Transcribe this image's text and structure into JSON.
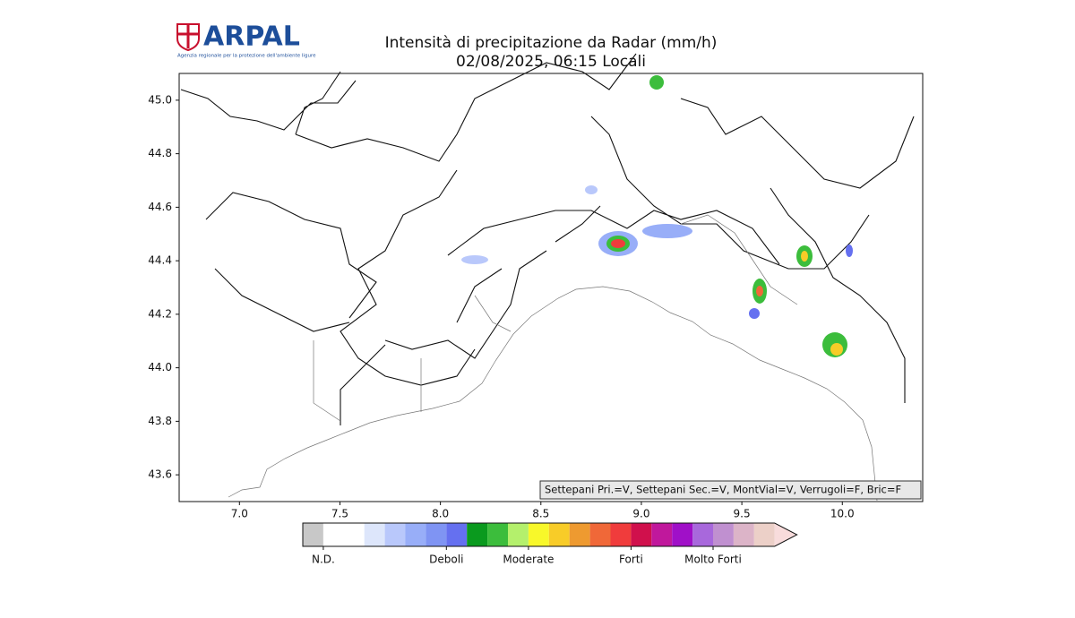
{
  "header": {
    "logo": "ARPAL",
    "logo_subtitle": "Agenzia regionale per la protezione dell'ambiente ligure",
    "title": "Intensità di precipitazione da Radar (mm/h)",
    "subtitle": "02/08/2025, 06:15 Locali"
  },
  "map": {
    "xlim": [
      6.7,
      10.4
    ],
    "ylim": [
      43.5,
      45.1
    ],
    "xticks": [
      {
        "value": 7,
        "label": "7.0"
      },
      {
        "value": 7.5,
        "label": "7.5"
      },
      {
        "value": 8,
        "label": "8.0"
      },
      {
        "value": 8.5,
        "label": "8.5"
      },
      {
        "value": 9,
        "label": "9.0"
      },
      {
        "value": 9.5,
        "label": "9.5"
      },
      {
        "value": 10,
        "label": "10.0"
      }
    ],
    "yticks": [
      {
        "value": 43.6,
        "label": "43.6"
      },
      {
        "value": 43.8,
        "label": "43.8"
      },
      {
        "value": 44,
        "label": "44.0"
      },
      {
        "value": 44.2,
        "label": "44.2"
      },
      {
        "value": 44.4,
        "label": "44.4"
      },
      {
        "value": 44.6,
        "label": "44.6"
      },
      {
        "value": 44.8,
        "label": "44.8"
      },
      {
        "value": 45,
        "label": "45.0"
      }
    ],
    "note": "Settepani Pri.=V, Settepani Sec.=V, MontVial=V, Verrugoli=F, Bric=F"
  },
  "colorbar": {
    "colors": [
      "#c8c8c8",
      "#ffffff",
      "#ffffff",
      "#dde6fb",
      "#b9c8fb",
      "#98aef8",
      "#7f94f3",
      "#6570f0",
      "#0a9a1e",
      "#3cbd3c",
      "#b4f06c",
      "#f8f82a",
      "#f8cc28",
      "#ee9a30",
      "#f06838",
      "#f03c3c",
      "#d0104c",
      "#c0189c",
      "#a010c8",
      "#a868dc",
      "#c090d0",
      "#dcb4c8",
      "#ecd0c8"
    ],
    "extend_color": "#f8dcdc",
    "labels": [
      "N.D.",
      "Deboli",
      "Moderate",
      "Forti",
      "Molto Forti"
    ]
  }
}
